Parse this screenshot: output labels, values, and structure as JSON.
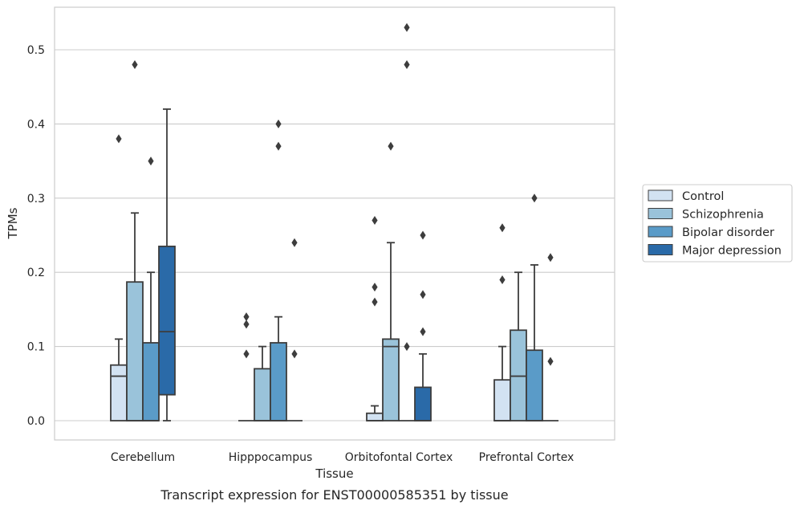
{
  "caption": "Transcript expression for ENST00000585351 by tissue",
  "chart_data": {
    "type": "box",
    "xlabel": "Tissue",
    "ylabel": "TPMs",
    "ylim": [
      -0.026,
      0.557
    ],
    "yticks": [
      "0.0",
      "0.1",
      "0.2",
      "0.3",
      "0.4",
      "0.5"
    ],
    "grid": "horizontal",
    "legend_placement": "right",
    "categories": [
      "Cerebellum",
      "Hipppocampus",
      "Orbitofontal Cortex",
      "Prefrontal Cortex"
    ],
    "series": [
      {
        "name": "Control",
        "color": "#d2e2f2",
        "boxes": [
          {
            "q1": 0,
            "median": 0.06,
            "q3": 0.075,
            "whisker_low": 0,
            "whisker_high": 0.11,
            "outliers": [
              0.38
            ]
          },
          {
            "q1": 0,
            "median": 0,
            "q3": 0,
            "whisker_low": 0,
            "whisker_high": 0,
            "outliers": [
              0.14,
              0.13,
              0.09
            ]
          },
          {
            "q1": 0,
            "median": 0,
            "q3": 0.01,
            "whisker_low": 0,
            "whisker_high": 0.02,
            "outliers": [
              0.27,
              0.18,
              0.16
            ]
          },
          {
            "q1": 0,
            "median": 0,
            "q3": 0.055,
            "whisker_low": 0,
            "whisker_high": 0.1,
            "outliers": [
              0.26,
              0.19
            ]
          }
        ]
      },
      {
        "name": "Schizophrenia",
        "color": "#9ac3da",
        "boxes": [
          {
            "q1": 0,
            "median": 0,
            "q3": 0.187,
            "whisker_low": 0,
            "whisker_high": 0.28,
            "outliers": [
              0.48
            ]
          },
          {
            "q1": 0,
            "median": 0,
            "q3": 0.07,
            "whisker_low": 0,
            "whisker_high": 0.1,
            "outliers": []
          },
          {
            "q1": 0,
            "median": 0.1,
            "q3": 0.11,
            "whisker_low": 0,
            "whisker_high": 0.24,
            "outliers": [
              0.37
            ]
          },
          {
            "q1": 0,
            "median": 0.06,
            "q3": 0.122,
            "whisker_low": 0,
            "whisker_high": 0.2,
            "outliers": []
          }
        ]
      },
      {
        "name": "Bipolar disorder",
        "color": "#5a9bc8",
        "boxes": [
          {
            "q1": 0,
            "median": 0,
            "q3": 0.105,
            "whisker_low": 0,
            "whisker_high": 0.2,
            "outliers": [
              0.35
            ]
          },
          {
            "q1": 0,
            "median": 0,
            "q3": 0.105,
            "whisker_low": 0,
            "whisker_high": 0.14,
            "outliers": [
              0.4,
              0.37
            ]
          },
          {
            "q1": 0,
            "median": 0,
            "q3": 0,
            "whisker_low": 0,
            "whisker_high": 0,
            "outliers": [
              0.53,
              0.48,
              0.1
            ]
          },
          {
            "q1": 0,
            "median": 0,
            "q3": 0.095,
            "whisker_low": 0,
            "whisker_high": 0.21,
            "outliers": [
              0.3
            ]
          }
        ]
      },
      {
        "name": "Major depression",
        "color": "#2a6aa8",
        "boxes": [
          {
            "q1": 0.035,
            "median": 0.12,
            "q3": 0.235,
            "whisker_low": 0,
            "whisker_high": 0.42,
            "outliers": []
          },
          {
            "q1": 0,
            "median": 0,
            "q3": 0,
            "whisker_low": 0,
            "whisker_high": 0,
            "outliers": [
              0.24,
              0.09
            ]
          },
          {
            "q1": 0,
            "median": 0,
            "q3": 0.045,
            "whisker_low": 0,
            "whisker_high": 0.09,
            "outliers": [
              0.25,
              0.17,
              0.12
            ]
          },
          {
            "q1": 0,
            "median": 0,
            "q3": 0,
            "whisker_low": 0,
            "whisker_high": 0,
            "outliers": [
              0.22,
              0.08
            ]
          }
        ]
      }
    ]
  }
}
